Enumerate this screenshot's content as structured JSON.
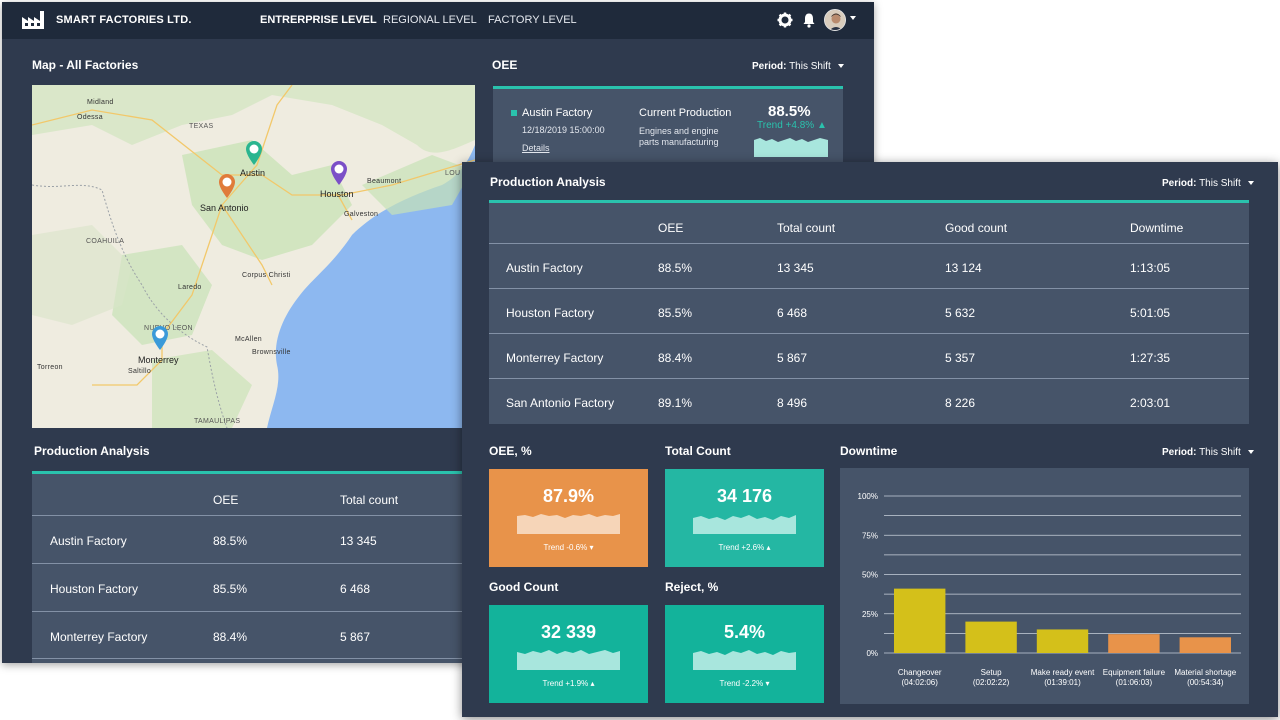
{
  "app": {
    "brand": "SMART FACTORIES LTD.",
    "nav": [
      "ENTRERPRISE LEVEL",
      "REGIONAL LEVEL",
      "FACTORY LEVEL"
    ],
    "icons": [
      "settings-icon",
      "bell-icon"
    ]
  },
  "map": {
    "title": "Map - All Factories",
    "regions": [
      "TEXAS",
      "COAHUILA",
      "NUEVO LEON",
      "TAMAULIPAS",
      "LOU"
    ],
    "towns": [
      "Midland",
      "Odessa",
      "Beaumont",
      "Galveston",
      "Corpus Christi",
      "Laredo",
      "McAllen",
      "Brownsville",
      "Torreon",
      "Saltillo"
    ],
    "factories": [
      {
        "name": "Austin",
        "color": "#2ab58f"
      },
      {
        "name": "Houston",
        "color": "#7b4fc7"
      },
      {
        "name": "San Antonio",
        "color": "#e07b3a"
      },
      {
        "name": "Monterrey",
        "color": "#3a9ad9"
      }
    ]
  },
  "oee": {
    "title": "OEE",
    "period_label": "Period:",
    "period_value": "This Shift",
    "factory": "Austin Factory",
    "datetime": "12/18/2019 15:00:00",
    "details": "Details",
    "current_label": "Current Production",
    "current_desc": "Engines and engine parts manufacturing",
    "value": "88.5%",
    "trend": "Trend +4.8%"
  },
  "back_table": {
    "title": "Production Analysis",
    "headers": [
      "OEE",
      "Total count"
    ],
    "rows": [
      [
        "Austin  Factory",
        "88.5%",
        "13 345"
      ],
      [
        "Houston Factory",
        "85.5%",
        "6 468"
      ],
      [
        "Monterrey Factory",
        "88.4%",
        "5 867"
      ]
    ]
  },
  "front": {
    "title": "Production Analysis",
    "period_label": "Period:",
    "period_value": "This Shift",
    "headers": [
      "OEE",
      "Total count",
      "Good count",
      "Downtime"
    ],
    "rows": [
      [
        "Austin  Factory",
        "88.5%",
        "13 345",
        "13 124",
        "1:13:05"
      ],
      [
        "Houston Factory",
        "85.5%",
        "6 468",
        "5 632",
        "5:01:05"
      ],
      [
        "Monterrey Factory",
        "88.4%",
        "5 867",
        "5 357",
        "1:27:35"
      ],
      [
        "San Antonio Factory",
        "89.1%",
        "8 496",
        "8 226",
        "2:03:01"
      ]
    ]
  },
  "kpis": [
    {
      "title": "OEE, %",
      "value": "87.9%",
      "trend": "Trend -0.6%",
      "color": "#e8934a"
    },
    {
      "title": "Total Count",
      "value": "34 176",
      "trend": "Trend +2.6%",
      "color": "#24b7a3"
    },
    {
      "title": "Good Count",
      "value": "32 339",
      "trend": "Trend +1.9%",
      "color": "#13b39b"
    },
    {
      "title": "Reject, %",
      "value": "5.4%",
      "trend": "Trend -2.2%",
      "color": "#13b39b"
    }
  ],
  "downtime": {
    "title": "Downtime",
    "period_label": "Period:",
    "period_value": "This Shift"
  },
  "chart_data": {
    "type": "bar",
    "title": "Downtime",
    "y_ticks": [
      "100%",
      "75%",
      "50%",
      "25%",
      "0%"
    ],
    "ylim": [
      0,
      100
    ],
    "categories": [
      "Changeover",
      "Setup",
      "Make ready event",
      "Equipment failure",
      "Material shortage"
    ],
    "durations": [
      "(04:02:06)",
      "(02:02:22)",
      "(01:39:01)",
      "(01:06:03)",
      "(00:54:34)"
    ],
    "values": [
      41,
      20,
      15,
      12,
      10
    ],
    "colors": [
      "#d4c01a",
      "#d4c01a",
      "#d4c01a",
      "#e8934a",
      "#e8934a"
    ]
  }
}
